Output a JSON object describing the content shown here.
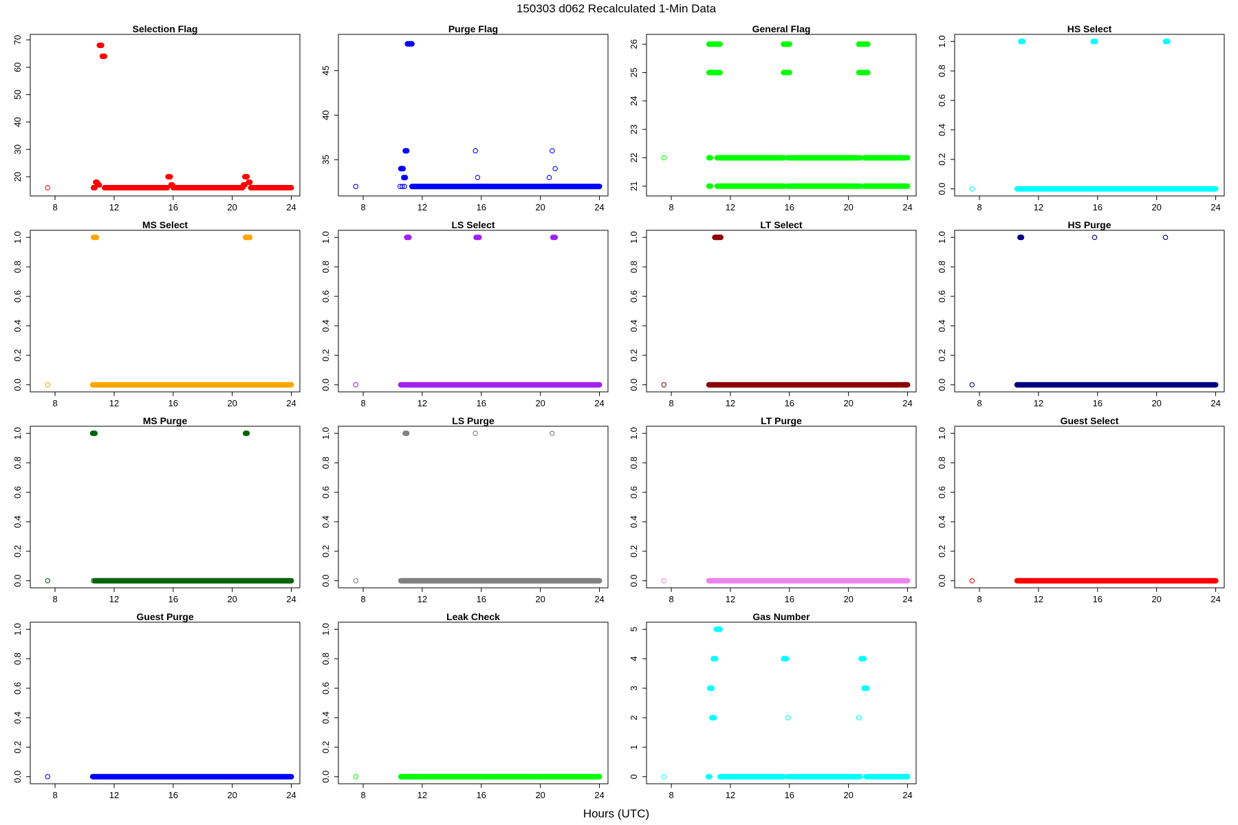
{
  "figure": {
    "title": "150303   d062   Recalculated 1-Min Data",
    "xlabel": "Hours (UTC)"
  },
  "chart_data": [
    {
      "type": "scatter",
      "title": "Selection Flag",
      "color": "#ff0000",
      "xlim": [
        6.6,
        24.3
      ],
      "ylim": [
        14.5,
        70.5
      ],
      "xticks": [
        8,
        12,
        16,
        20,
        24
      ],
      "yticks": [
        20,
        30,
        40,
        50,
        60,
        70
      ],
      "points": [
        [
          7.5,
          16
        ]
      ],
      "runs": [
        [
          10.6,
          10.7,
          16
        ],
        [
          10.75,
          10.85,
          18
        ],
        [
          10.95,
          11.0,
          17
        ],
        [
          11.0,
          11.15,
          68
        ],
        [
          11.2,
          11.35,
          64
        ],
        [
          11.35,
          15.6,
          16
        ],
        [
          15.65,
          15.8,
          20
        ],
        [
          15.85,
          15.95,
          17
        ],
        [
          16.0,
          20.7,
          16
        ],
        [
          20.75,
          20.85,
          17
        ],
        [
          20.85,
          21.0,
          20
        ],
        [
          21.1,
          21.2,
          18
        ],
        [
          21.25,
          24.0,
          16
        ]
      ]
    },
    {
      "type": "scatter",
      "title": "Purge Flag",
      "color": "#0000ff",
      "xlim": [
        6.6,
        24.3
      ],
      "ylim": [
        31.4,
        48.6
      ],
      "xticks": [
        8,
        12,
        16,
        20,
        24
      ],
      "yticks": [
        35,
        40,
        45
      ],
      "points": [
        [
          7.5,
          32
        ],
        [
          10.5,
          32
        ],
        [
          10.65,
          32
        ],
        [
          10.8,
          32
        ],
        [
          15.6,
          36
        ],
        [
          15.75,
          33
        ],
        [
          20.6,
          33
        ],
        [
          20.8,
          36
        ],
        [
          21.0,
          34
        ]
      ],
      "runs": [
        [
          10.55,
          10.7,
          34
        ],
        [
          10.75,
          10.85,
          33
        ],
        [
          10.85,
          10.95,
          36
        ],
        [
          11.0,
          11.3,
          48
        ],
        [
          11.3,
          24.0,
          32
        ]
      ]
    },
    {
      "type": "scatter",
      "title": "General Flag",
      "color": "#00ff00",
      "xlim": [
        6.6,
        24.3
      ],
      "ylim": [
        20.8,
        26.2
      ],
      "xticks": [
        8,
        12,
        16,
        20,
        24
      ],
      "yticks": [
        21,
        22,
        23,
        24,
        25,
        26
      ],
      "points": [
        [
          7.5,
          22
        ]
      ],
      "runs": [
        [
          10.55,
          10.65,
          22
        ],
        [
          10.55,
          10.65,
          21
        ],
        [
          10.55,
          11.3,
          26
        ],
        [
          10.55,
          11.3,
          25
        ],
        [
          11.1,
          15.6,
          22
        ],
        [
          11.1,
          15.6,
          21
        ],
        [
          15.6,
          16.0,
          26
        ],
        [
          15.6,
          16.0,
          25
        ],
        [
          15.9,
          20.8,
          22
        ],
        [
          15.9,
          20.8,
          21
        ],
        [
          20.7,
          21.3,
          26
        ],
        [
          20.7,
          21.3,
          25
        ],
        [
          21.1,
          24.0,
          22
        ],
        [
          21.1,
          24.0,
          21
        ]
      ]
    },
    {
      "type": "scatter",
      "title": "HS Select",
      "color": "#00ffff",
      "xlim": [
        6.6,
        24.3
      ],
      "ylim": [
        -0.02,
        1.02
      ],
      "xticks": [
        8,
        12,
        16,
        20,
        24
      ],
      "yticks": [
        0.0,
        0.2,
        0.4,
        0.6,
        0.8,
        1.0
      ],
      "points": [
        [
          7.5,
          0
        ]
      ],
      "runs": [
        [
          10.55,
          24.0,
          0
        ],
        [
          10.8,
          10.95,
          1
        ],
        [
          15.7,
          15.85,
          1
        ],
        [
          20.6,
          20.75,
          1
        ]
      ]
    },
    {
      "type": "scatter",
      "title": "MS Select",
      "color": "#ffa500",
      "xlim": [
        6.6,
        24.3
      ],
      "ylim": [
        -0.02,
        1.02
      ],
      "xticks": [
        8,
        12,
        16,
        20,
        24
      ],
      "yticks": [
        0.0,
        0.2,
        0.4,
        0.6,
        0.8,
        1.0
      ],
      "points": [
        [
          7.5,
          0
        ]
      ],
      "runs": [
        [
          10.55,
          24.0,
          0
        ],
        [
          10.6,
          10.8,
          1
        ],
        [
          20.9,
          21.2,
          1
        ]
      ]
    },
    {
      "type": "scatter",
      "title": "LS Select",
      "color": "#a020f0",
      "xlim": [
        6.6,
        24.3
      ],
      "ylim": [
        -0.02,
        1.02
      ],
      "xticks": [
        8,
        12,
        16,
        20,
        24
      ],
      "yticks": [
        0.0,
        0.2,
        0.4,
        0.6,
        0.8,
        1.0
      ],
      "points": [
        [
          7.5,
          0
        ]
      ],
      "runs": [
        [
          10.55,
          24.0,
          0
        ],
        [
          10.95,
          11.1,
          1
        ],
        [
          15.65,
          15.85,
          1
        ],
        [
          20.85,
          21.0,
          1
        ]
      ]
    },
    {
      "type": "scatter",
      "title": "LT Select",
      "color": "#8b0000",
      "xlim": [
        6.6,
        24.3
      ],
      "ylim": [
        -0.02,
        1.02
      ],
      "xticks": [
        8,
        12,
        16,
        20,
        24
      ],
      "yticks": [
        0.0,
        0.2,
        0.4,
        0.6,
        0.8,
        1.0
      ],
      "points": [
        [
          7.5,
          0
        ]
      ],
      "runs": [
        [
          10.55,
          24.0,
          0
        ],
        [
          10.95,
          11.35,
          1
        ]
      ]
    },
    {
      "type": "scatter",
      "title": "HS Purge",
      "color": "#000080",
      "xlim": [
        6.6,
        24.3
      ],
      "ylim": [
        -0.02,
        1.02
      ],
      "xticks": [
        8,
        12,
        16,
        20,
        24
      ],
      "yticks": [
        0.0,
        0.2,
        0.4,
        0.6,
        0.8,
        1.0
      ],
      "points": [
        [
          7.5,
          0
        ],
        [
          15.8,
          1
        ],
        [
          20.6,
          1
        ]
      ],
      "runs": [
        [
          10.55,
          24.0,
          0
        ],
        [
          10.75,
          10.85,
          1
        ]
      ]
    },
    {
      "type": "scatter",
      "title": "MS Purge",
      "color": "#006400",
      "xlim": [
        6.6,
        24.3
      ],
      "ylim": [
        -0.02,
        1.02
      ],
      "xticks": [
        8,
        12,
        16,
        20,
        24
      ],
      "yticks": [
        0.0,
        0.2,
        0.4,
        0.6,
        0.8,
        1.0
      ],
      "points": [
        [
          7.5,
          0
        ],
        [
          10.6,
          0
        ]
      ],
      "runs": [
        [
          10.7,
          24.0,
          0
        ],
        [
          10.55,
          10.7,
          1
        ],
        [
          20.9,
          21.0,
          1
        ]
      ]
    },
    {
      "type": "scatter",
      "title": "LS Purge",
      "color": "#808080",
      "xlim": [
        6.6,
        24.3
      ],
      "ylim": [
        -0.02,
        1.02
      ],
      "xticks": [
        8,
        12,
        16,
        20,
        24
      ],
      "yticks": [
        0.0,
        0.2,
        0.4,
        0.6,
        0.8,
        1.0
      ],
      "points": [
        [
          7.5,
          0
        ],
        [
          15.6,
          1
        ],
        [
          20.8,
          1
        ]
      ],
      "runs": [
        [
          10.55,
          24.0,
          0
        ],
        [
          10.85,
          10.95,
          1
        ]
      ]
    },
    {
      "type": "scatter",
      "title": "LT Purge",
      "color": "#ee82ee",
      "xlim": [
        6.6,
        24.3
      ],
      "ylim": [
        -0.02,
        1.02
      ],
      "xticks": [
        8,
        12,
        16,
        20,
        24
      ],
      "yticks": [
        0.0,
        0.2,
        0.4,
        0.6,
        0.8,
        1.0
      ],
      "points": [
        [
          7.5,
          0
        ]
      ],
      "runs": [
        [
          10.55,
          24.0,
          0
        ]
      ]
    },
    {
      "type": "scatter",
      "title": "Guest Select",
      "color": "#ff0000",
      "xlim": [
        6.6,
        24.3
      ],
      "ylim": [
        -0.02,
        1.02
      ],
      "xticks": [
        8,
        12,
        16,
        20,
        24
      ],
      "yticks": [
        0.0,
        0.2,
        0.4,
        0.6,
        0.8,
        1.0
      ],
      "points": [
        [
          7.5,
          0
        ]
      ],
      "runs": [
        [
          10.55,
          24.0,
          0
        ]
      ]
    },
    {
      "type": "scatter",
      "title": "Guest Purge",
      "color": "#0000ff",
      "xlim": [
        6.6,
        24.3
      ],
      "ylim": [
        -0.02,
        1.02
      ],
      "xticks": [
        8,
        12,
        16,
        20,
        24
      ],
      "yticks": [
        0.0,
        0.2,
        0.4,
        0.6,
        0.8,
        1.0
      ],
      "points": [
        [
          7.5,
          0
        ]
      ],
      "runs": [
        [
          10.55,
          24.0,
          0
        ]
      ]
    },
    {
      "type": "scatter",
      "title": "Leak Check",
      "color": "#00ff00",
      "xlim": [
        6.6,
        24.3
      ],
      "ylim": [
        -0.02,
        1.02
      ],
      "xticks": [
        8,
        12,
        16,
        20,
        24
      ],
      "yticks": [
        0.0,
        0.2,
        0.4,
        0.6,
        0.8,
        1.0
      ],
      "points": [
        [
          7.5,
          0
        ]
      ],
      "runs": [
        [
          10.55,
          24.0,
          0
        ]
      ]
    },
    {
      "type": "scatter",
      "title": "Gas Number",
      "color": "#00ffff",
      "xlim": [
        6.6,
        24.3
      ],
      "ylim": [
        -0.1,
        5.1
      ],
      "xticks": [
        8,
        12,
        16,
        20,
        24
      ],
      "yticks": [
        0,
        1,
        2,
        3,
        4,
        5
      ],
      "points": [
        [
          7.5,
          0
        ],
        [
          15.9,
          2
        ],
        [
          20.7,
          2
        ]
      ],
      "runs": [
        [
          10.5,
          10.6,
          0
        ],
        [
          11.3,
          15.6,
          0
        ],
        [
          15.9,
          20.8,
          0
        ],
        [
          21.2,
          24.0,
          0
        ],
        [
          10.6,
          10.75,
          3
        ],
        [
          10.75,
          10.9,
          2
        ],
        [
          10.85,
          11.0,
          4
        ],
        [
          11.05,
          11.3,
          5
        ],
        [
          15.6,
          15.8,
          4
        ],
        [
          20.85,
          21.05,
          4
        ],
        [
          21.05,
          21.25,
          3
        ]
      ]
    }
  ]
}
